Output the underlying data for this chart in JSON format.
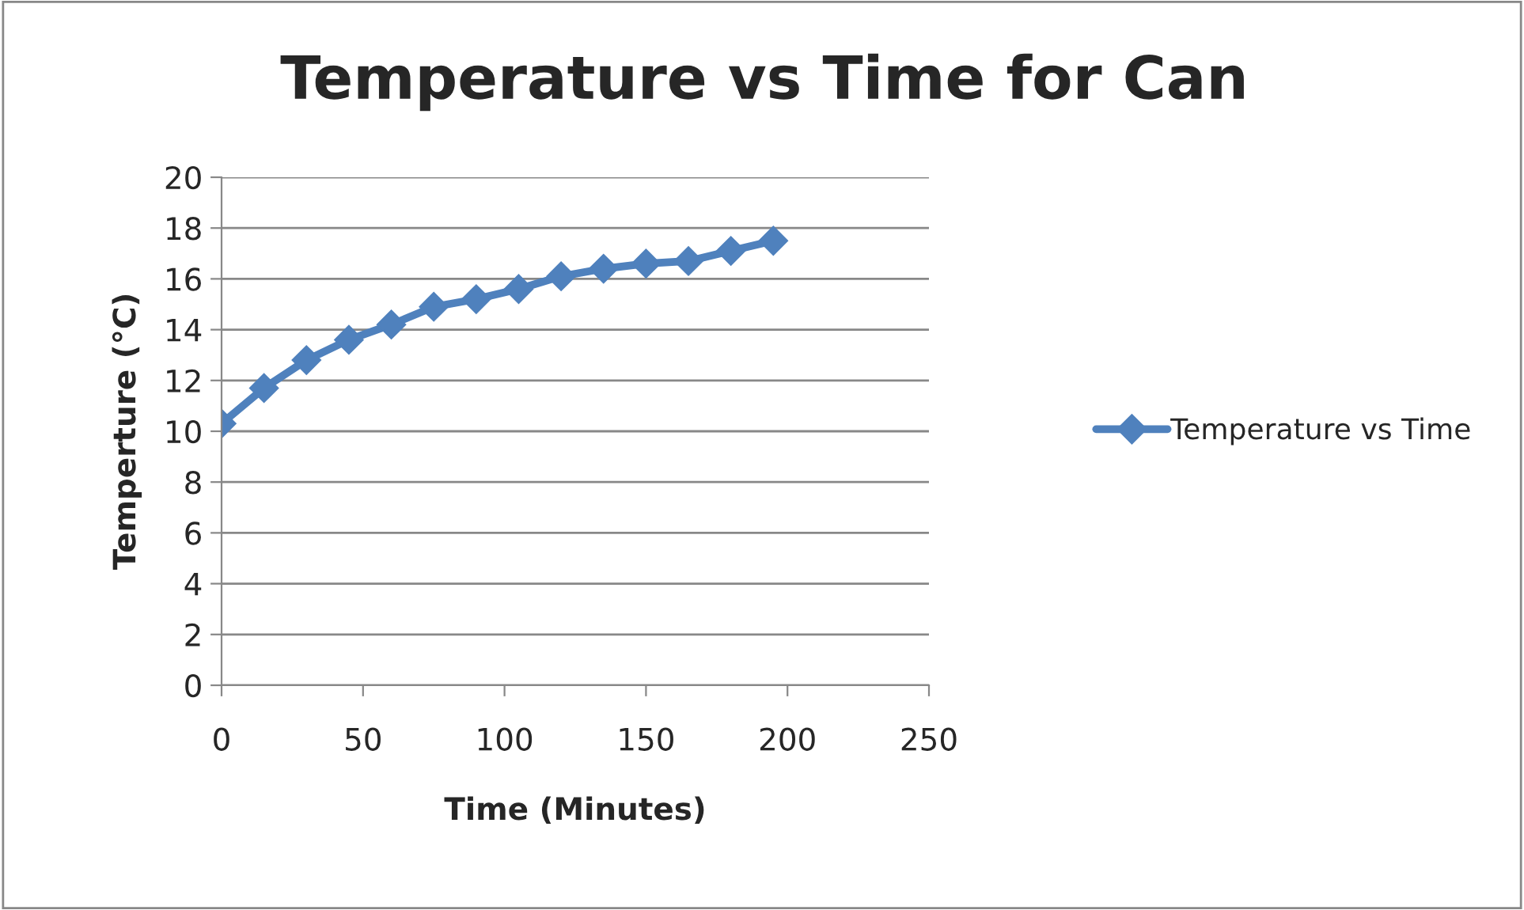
{
  "chart_data": {
    "type": "line",
    "title": "Temperature vs Time for Can",
    "xlabel": "Time (Minutes)",
    "ylabel": "Temperture (°C)",
    "x": [
      0,
      15,
      30,
      45,
      60,
      75,
      90,
      105,
      120,
      135,
      150,
      165,
      180,
      195
    ],
    "series": [
      {
        "name": "Temperature vs Time",
        "color": "#4f81bd",
        "values": [
          10.3,
          11.7,
          12.8,
          13.6,
          14.2,
          14.9,
          15.2,
          15.6,
          16.1,
          16.4,
          16.6,
          16.7,
          17.1,
          17.5
        ]
      }
    ],
    "xlim": [
      0,
      250
    ],
    "xticks": [
      0,
      50,
      100,
      150,
      200,
      250
    ],
    "ylim": [
      0,
      20
    ],
    "yticks": [
      0,
      2,
      4,
      6,
      8,
      10,
      12,
      14,
      16,
      18,
      20
    ],
    "grid": "y",
    "legend": "right",
    "marker": "diamond",
    "line_style": "solid"
  }
}
